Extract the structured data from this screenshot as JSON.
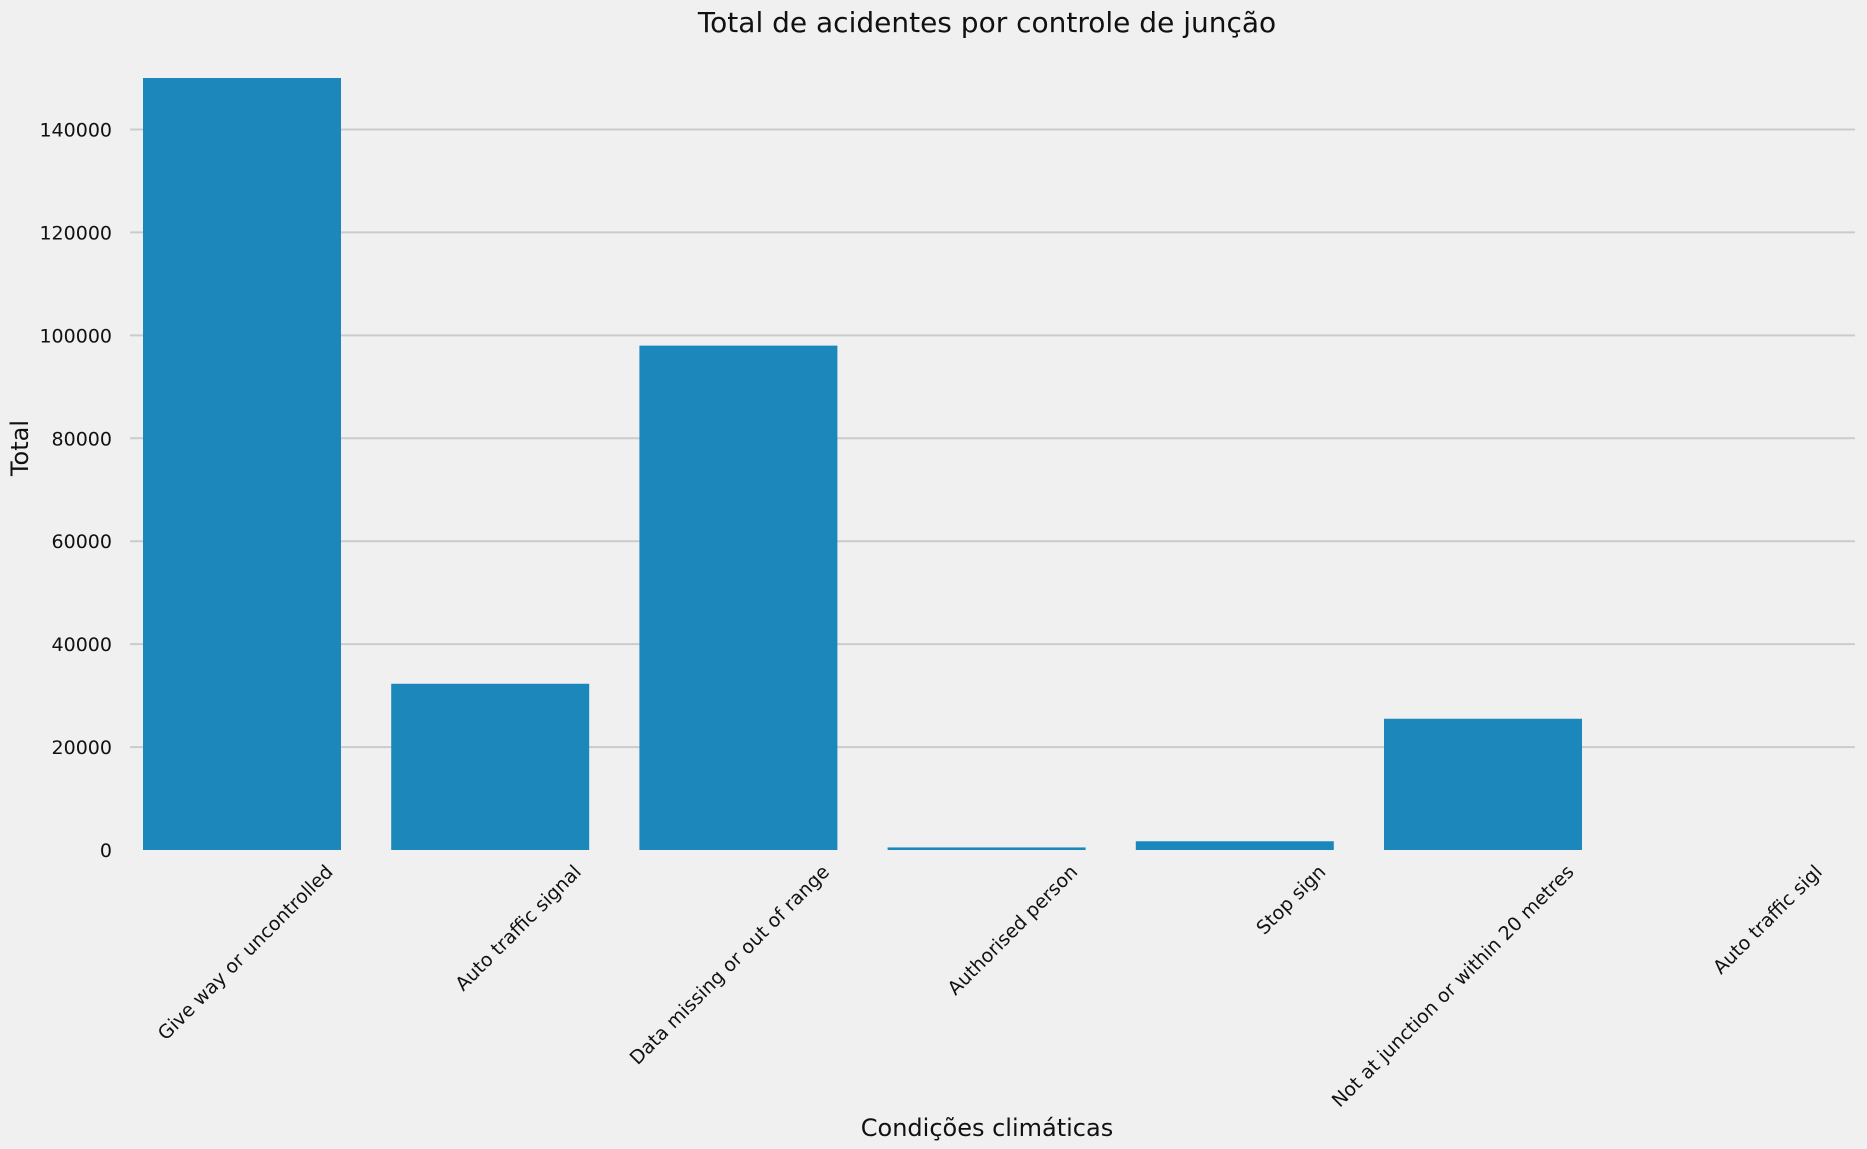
{
  "chart_data": {
    "type": "bar",
    "title": "Total de acidentes por controle de junção",
    "xlabel": "Condições climáticas",
    "ylabel": "Total",
    "categories": [
      "Give way or uncontrolled",
      "Auto traffic signal",
      "Data missing or out of range",
      "Authorised person",
      "Stop sign",
      "Not at junction or within 20 metres",
      "Auto traffic sigl"
    ],
    "values": [
      150000,
      32300,
      98000,
      500,
      1700,
      25500,
      0
    ],
    "yticks": [
      0,
      20000,
      40000,
      60000,
      80000,
      100000,
      120000,
      140000
    ],
    "ylim": [
      0,
      150000
    ],
    "grid": "horizontal",
    "bar_color": "#1b87bb",
    "background": "#f0f0f0"
  }
}
